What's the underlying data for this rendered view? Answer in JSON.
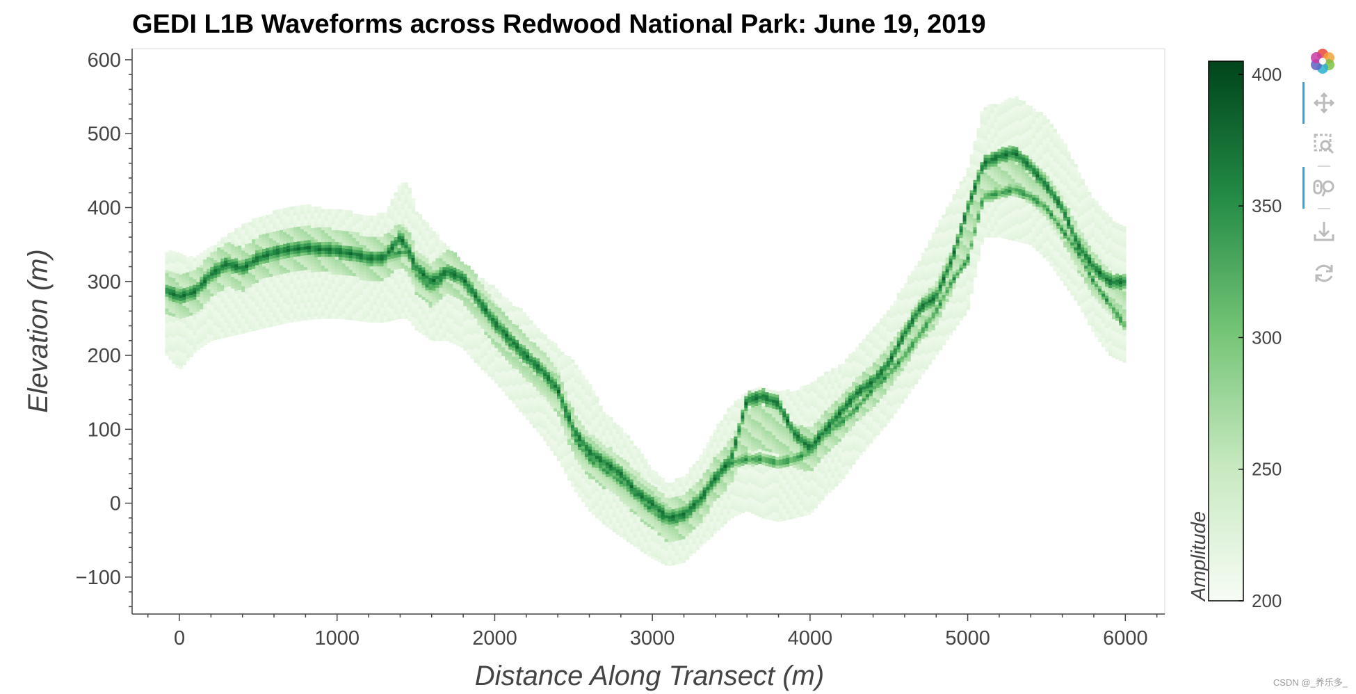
{
  "colors": {
    "colormap_low": "#f7fcf5",
    "colormap_high": "#00441b",
    "axis": "#444444",
    "toolbar_active": "#26aae1",
    "toolbar_icon": "#bbbbbb"
  },
  "toolbar": {
    "tools": [
      {
        "name": "bokeh-logo-icon",
        "active": false
      },
      {
        "name": "pan-icon",
        "active": true
      },
      {
        "name": "box-zoom-icon",
        "active": false
      },
      {
        "name": "wheel-zoom-icon",
        "active": true
      },
      {
        "name": "save-icon",
        "active": false
      },
      {
        "name": "reset-icon",
        "active": false
      }
    ]
  },
  "watermark": "CSDN @_养乐多_",
  "chart_data": {
    "type": "heatmap",
    "title": "GEDI L1B Waveforms across Redwood National Park: June 19, 2019",
    "xlabel": "Distance Along Transect (m)",
    "ylabel": "Elevation (m)",
    "xlim": [
      -300,
      6250
    ],
    "ylim": [
      -150,
      615
    ],
    "xticks": [
      0,
      1000,
      2000,
      3000,
      4000,
      5000,
      6000
    ],
    "xtick_labels": [
      "0",
      "1000",
      "2000",
      "3000",
      "4000",
      "5000",
      "6000"
    ],
    "yticks": [
      -100,
      0,
      100,
      200,
      300,
      400,
      500,
      600
    ],
    "ytick_labels": [
      "−100",
      "0",
      "100",
      "200",
      "300",
      "400",
      "500",
      "600"
    ],
    "grid": false,
    "colorbar": {
      "title": "Amplitude",
      "range": [
        200,
        405
      ],
      "ticks": [
        200,
        250,
        300,
        350,
        400
      ],
      "tick_labels": [
        "200",
        "250",
        "300",
        "350",
        "400"
      ]
    },
    "profile": {
      "description_columns": [
        "distance",
        "ground",
        "top",
        "bottom",
        "peak"
      ],
      "distance": [
        -80,
        0,
        100,
        200,
        300,
        400,
        500,
        600,
        700,
        800,
        900,
        1000,
        1100,
        1200,
        1300,
        1400,
        1450,
        1500,
        1600,
        1700,
        1800,
        1900,
        2000,
        2100,
        2200,
        2300,
        2400,
        2500,
        2600,
        2700,
        2800,
        2900,
        3000,
        3100,
        3200,
        3300,
        3400,
        3500,
        3600,
        3700,
        3800,
        3900,
        4000,
        4100,
        4200,
        4300,
        4400,
        4500,
        4600,
        4700,
        4800,
        4900,
        5000,
        5100,
        5200,
        5300,
        5400,
        5500,
        5600,
        5700,
        5800,
        5900,
        6000
      ],
      "ground": [
        285,
        278,
        285,
        305,
        322,
        315,
        330,
        338,
        342,
        344,
        343,
        340,
        336,
        330,
        332,
        340,
        340,
        310,
        290,
        310,
        300,
        270,
        240,
        215,
        195,
        175,
        150,
        90,
        60,
        45,
        30,
        10,
        -10,
        -25,
        -20,
        0,
        30,
        55,
        60,
        60,
        55,
        60,
        70,
        95,
        110,
        130,
        155,
        175,
        200,
        230,
        260,
        300,
        330,
        415,
        420,
        425,
        415,
        400,
        370,
        340,
        300,
        270,
        240
      ],
      "top": [
        340,
        335,
        330,
        345,
        360,
        375,
        385,
        392,
        400,
        402,
        398,
        395,
        392,
        388,
        390,
        430,
        435,
        395,
        370,
        345,
        325,
        305,
        290,
        270,
        255,
        230,
        210,
        190,
        160,
        120,
        100,
        75,
        45,
        25,
        35,
        60,
        100,
        130,
        150,
        155,
        150,
        150,
        160,
        175,
        185,
        210,
        235,
        260,
        295,
        330,
        370,
        410,
        450,
        535,
        540,
        548,
        535,
        520,
        490,
        450,
        410,
        385,
        370
      ],
      "bottom": [
        200,
        180,
        205,
        220,
        225,
        230,
        235,
        240,
        245,
        248,
        250,
        250,
        248,
        245,
        245,
        250,
        250,
        235,
        220,
        220,
        210,
        185,
        165,
        140,
        115,
        90,
        60,
        20,
        -10,
        -30,
        -45,
        -60,
        -75,
        -85,
        -80,
        -60,
        -40,
        -20,
        -10,
        -20,
        -25,
        -20,
        -15,
        10,
        30,
        60,
        85,
        110,
        140,
        170,
        200,
        230,
        260,
        360,
        360,
        355,
        350,
        330,
        300,
        270,
        230,
        200,
        190
      ],
      "peak": [
        288,
        280,
        287,
        310,
        325,
        318,
        332,
        340,
        344,
        346,
        344,
        342,
        338,
        332,
        333,
        360,
        345,
        320,
        300,
        315,
        305,
        275,
        245,
        222,
        200,
        180,
        155,
        100,
        70,
        55,
        40,
        15,
        0,
        -20,
        -15,
        5,
        35,
        60,
        140,
        145,
        135,
        95,
        75,
        100,
        125,
        150,
        165,
        190,
        230,
        265,
        280,
        330,
        400,
        460,
        470,
        475,
        455,
        430,
        400,
        350,
        320,
        300,
        300
      ]
    }
  }
}
